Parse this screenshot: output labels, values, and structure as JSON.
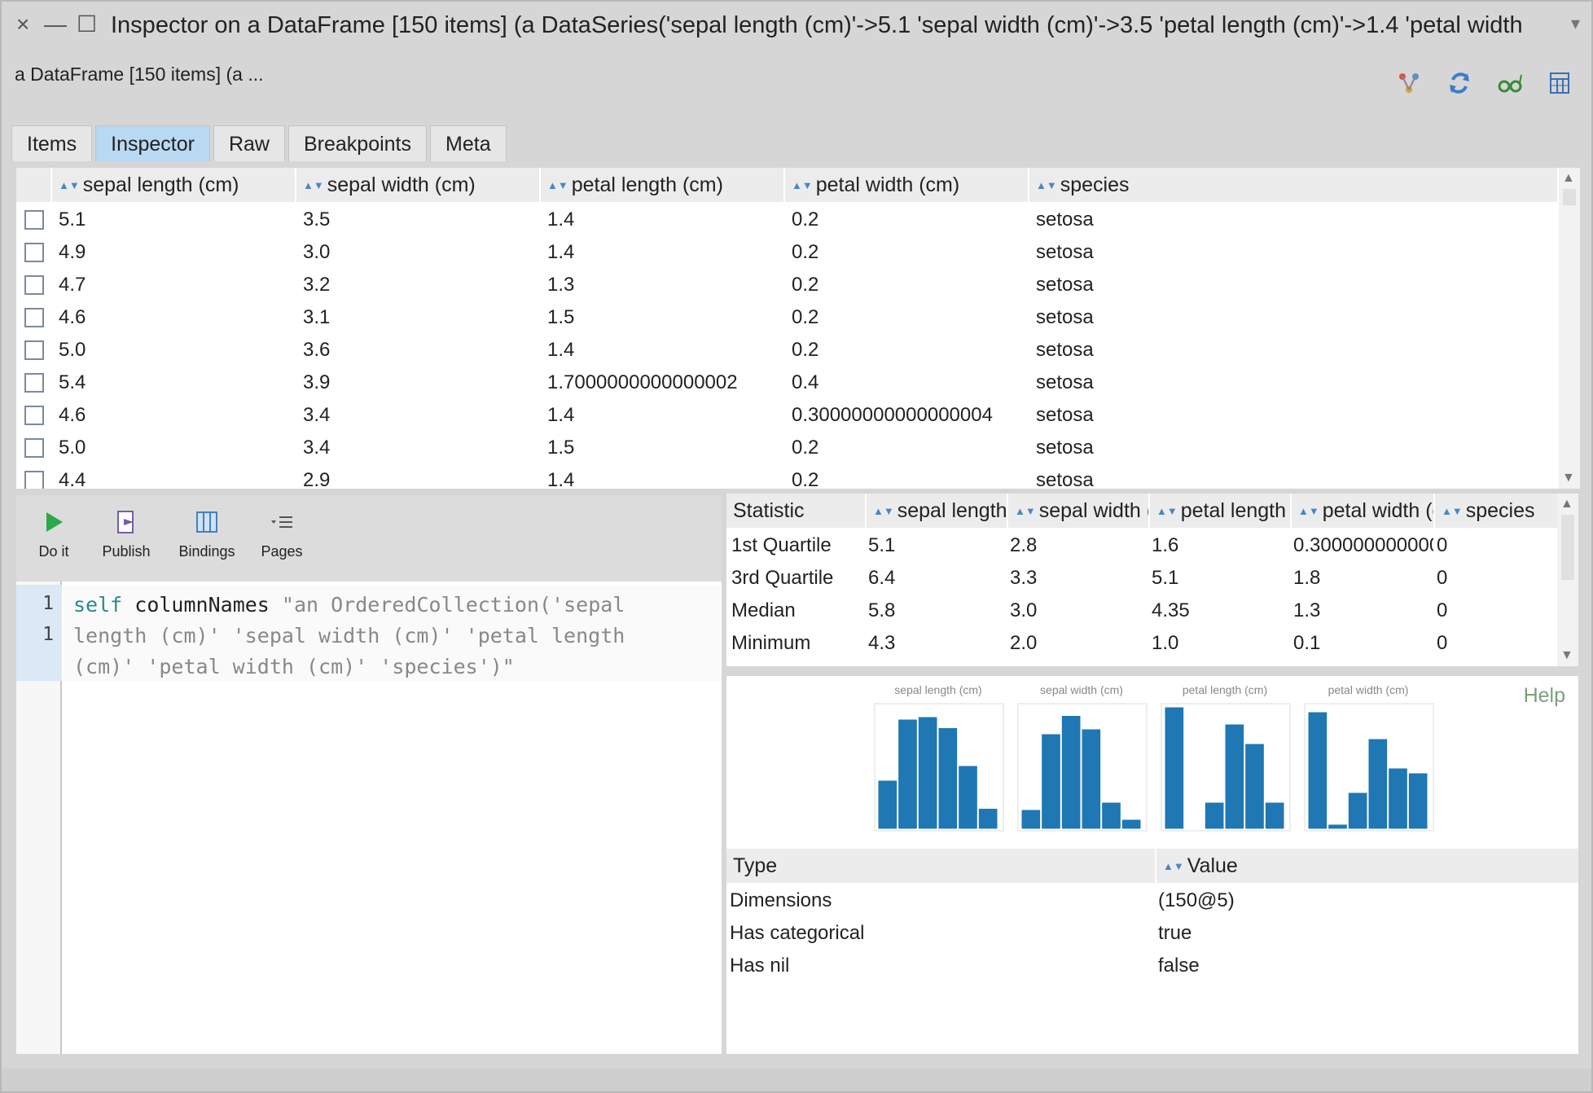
{
  "window": {
    "title": "Inspector on a DataFrame [150 items] (a DataSeries('sepal length (cm)'->5.1 'sepal width (cm)'->3.5 'petal length (cm)'->1.4 'petal width",
    "subtitle": "a DataFrame [150 items] (a ...",
    "close_glyph": "×",
    "minimize_glyph": "—",
    "maximize_glyph": "☐",
    "menu_glyph": "▾"
  },
  "toolbar_icons": [
    "browse-icon",
    "refresh-icon",
    "inspect-glasses-icon",
    "toggle-panes-icon"
  ],
  "tabs": [
    {
      "label": "Items",
      "active": false
    },
    {
      "label": "Inspector",
      "active": true
    },
    {
      "label": "Raw",
      "active": false
    },
    {
      "label": "Breakpoints",
      "active": false
    },
    {
      "label": "Meta",
      "active": false
    }
  ],
  "main_table": {
    "columns": [
      "sepal length (cm)",
      "sepal width (cm)",
      "petal length (cm)",
      "petal width (cm)",
      "species"
    ],
    "rows": [
      [
        "5.1",
        "3.5",
        "1.4",
        "0.2",
        "setosa"
      ],
      [
        "4.9",
        "3.0",
        "1.4",
        "0.2",
        "setosa"
      ],
      [
        "4.7",
        "3.2",
        "1.3",
        "0.2",
        "setosa"
      ],
      [
        "4.6",
        "3.1",
        "1.5",
        "0.2",
        "setosa"
      ],
      [
        "5.0",
        "3.6",
        "1.4",
        "0.2",
        "setosa"
      ],
      [
        "5.4",
        "3.9",
        "1.7000000000000002",
        "0.4",
        "setosa"
      ],
      [
        "4.6",
        "3.4",
        "1.4",
        "0.30000000000000004",
        "setosa"
      ],
      [
        "5.0",
        "3.4",
        "1.5",
        "0.2",
        "setosa"
      ],
      [
        "4.4",
        "2.9",
        "1.4",
        "0.2",
        "setosa"
      ]
    ]
  },
  "code_toolbar": {
    "do_it": "Do it",
    "publish": "Publish",
    "bindings": "Bindings",
    "pages": "Pages"
  },
  "code": {
    "line_numbers": [
      "1",
      "1"
    ],
    "keyword": "self",
    "message": "columnNames",
    "comment_lines": [
      "\"an OrderedCollection('sepal",
      "length (cm)' 'sepal width (cm)' 'petal length",
      "(cm)' 'petal width (cm)' 'species')\""
    ]
  },
  "stats_table": {
    "columns": [
      "Statistic",
      "sepal length (",
      "sepal width (c",
      "petal length (",
      "petal width (c",
      "species"
    ],
    "rows": [
      [
        "1st Quartile",
        "5.1",
        "2.8",
        "1.6",
        "0.30000000000000",
        "0"
      ],
      [
        "3rd Quartile",
        "6.4",
        "3.3",
        "5.1",
        "1.8",
        "0"
      ],
      [
        "Median",
        "5.8",
        "3.0",
        "4.35",
        "1.3",
        "0"
      ],
      [
        "Minimum",
        "4.3",
        "2.0",
        "1.0",
        "0.1",
        "0"
      ]
    ]
  },
  "histograms": {
    "help_label": "Help",
    "bar_color": "#1f77b4",
    "panels": [
      {
        "title": "sepal length (cm)",
        "values": [
          0.4,
          0.9,
          0.92,
          0.83,
          0.52,
          0.17
        ]
      },
      {
        "title": "sepal width (cm)",
        "values": [
          0.16,
          0.78,
          0.93,
          0.82,
          0.22,
          0.08
        ]
      },
      {
        "title": "petal length (cm)",
        "values": [
          1.0,
          0.0,
          0.22,
          0.86,
          0.7,
          0.22
        ]
      },
      {
        "title": "petal width (cm)",
        "values": [
          0.96,
          0.04,
          0.3,
          0.74,
          0.5,
          0.46
        ]
      }
    ]
  },
  "info_table": {
    "columns": [
      "Type",
      "Value"
    ],
    "rows": [
      [
        "Dimensions",
        "(150@5)"
      ],
      [
        "Has categorical",
        "true"
      ],
      [
        "Has nil",
        "false"
      ]
    ]
  }
}
